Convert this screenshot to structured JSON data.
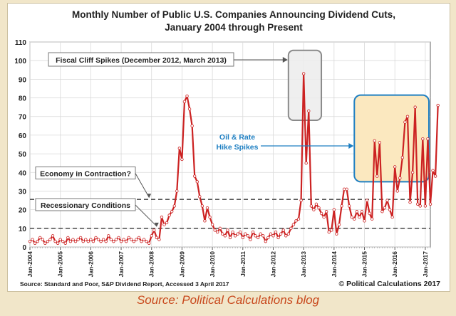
{
  "caption": "Source: Political Calculations blog",
  "chart_data": {
    "type": "line",
    "title_line1": "Monthly Number of Public U.S. Companies Announcing Dividend Cuts,",
    "title_line2": "January 2004 through Present",
    "xlabel": "",
    "ylabel": "",
    "ylim": [
      0,
      110
    ],
    "yticks": [
      0,
      10,
      20,
      30,
      40,
      50,
      60,
      70,
      80,
      90,
      100,
      110
    ],
    "xticks": [
      "Jan-2004",
      "Jan-2005",
      "Jan-2006",
      "Jan-2007",
      "Jan-2008",
      "Jan-2009",
      "Jan-2010",
      "Jan-2011",
      "Jan-2012",
      "Jan-2013",
      "Jan-2014",
      "Jan-2015",
      "Jan-2016",
      "Jan-2017"
    ],
    "grid": true,
    "x_start": "Jan-2004",
    "x_end": "Mar-2017",
    "series": [
      {
        "name": "Dividend Cuts",
        "color": "#cc2222",
        "values": [
          3,
          4,
          2,
          3,
          5,
          4,
          2,
          3,
          4,
          6,
          3,
          2,
          4,
          3,
          2,
          5,
          3,
          4,
          3,
          4,
          5,
          3,
          4,
          3,
          4,
          3,
          5,
          4,
          3,
          4,
          3,
          6,
          4,
          3,
          4,
          5,
          3,
          4,
          3,
          5,
          4,
          3,
          4,
          5,
          3,
          4,
          3,
          2,
          6,
          9,
          5,
          4,
          16,
          12,
          13,
          17,
          19,
          22,
          30,
          53,
          47,
          78,
          81,
          74,
          65,
          38,
          35,
          27,
          22,
          14,
          21,
          16,
          12,
          9,
          8,
          10,
          7,
          6,
          9,
          5,
          8,
          6,
          7,
          8,
          5,
          7,
          6,
          4,
          8,
          6,
          5,
          7,
          6,
          3,
          5,
          7,
          6,
          8,
          5,
          7,
          9,
          6,
          7,
          10,
          12,
          14,
          15,
          25,
          93,
          45,
          73,
          22,
          20,
          23,
          21,
          18,
          16,
          19,
          8,
          9,
          20,
          7,
          12,
          22,
          31,
          31,
          22,
          16,
          15,
          19,
          16,
          19,
          14,
          25,
          18,
          15,
          57,
          38,
          56,
          19,
          21,
          25,
          20,
          16,
          43,
          30,
          37,
          48,
          67,
          70,
          24,
          40,
          75,
          23,
          22,
          58,
          22,
          58,
          23,
          41,
          38,
          76
        ]
      }
    ],
    "reference_lines": [
      {
        "label": "Economy in Contraction?",
        "value": 25.5
      },
      {
        "label": "Recessionary Conditions",
        "value": 10
      }
    ],
    "annotations": {
      "fiscal_cliff": "Fiscal Cliff Spikes (December 2012, March 2013)",
      "oil_rate_line1": "Oil & Rate",
      "oil_rate_line2": "Hike Spikes"
    },
    "source_note": "Source: Standard and Poor, S&P Dividend Report, Accessed 3 April 2017",
    "copyright": "© Political Calculations 2017"
  },
  "colors": {
    "line": "#cc2222",
    "oil_box_fill": "#fbe8bf",
    "oil_box_stroke": "#1e7fc2",
    "oil_text": "#1e7fc2",
    "fiscal_box_fill": "#ececec",
    "fiscal_box_stroke": "#8a8a8a",
    "caption": "#c8481c"
  }
}
